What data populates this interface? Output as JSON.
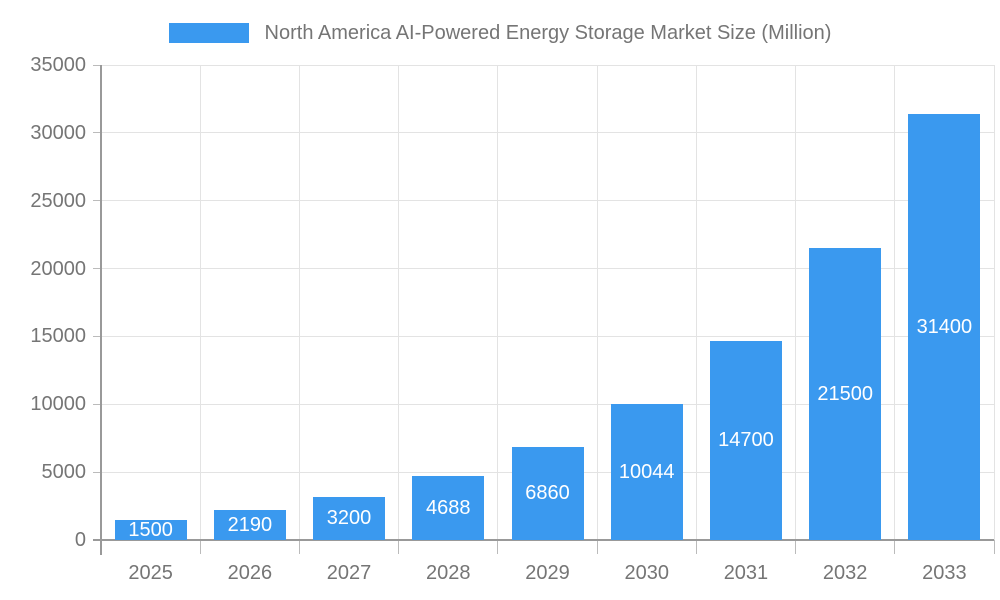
{
  "chart_data": {
    "type": "bar",
    "title": "",
    "categories": [
      "2025",
      "2026",
      "2027",
      "2028",
      "2029",
      "2030",
      "2031",
      "2032",
      "2033"
    ],
    "series": [
      {
        "name": "North America AI-Powered Energy Storage Market Size (Million)",
        "values": [
          1500,
          2190,
          3200,
          4688,
          6860,
          10044,
          14700,
          21500,
          31400
        ],
        "data_labels": [
          "1500",
          "2190",
          "3200",
          "4688",
          "6860",
          "10044",
          "14700",
          "21500",
          "31400"
        ]
      }
    ],
    "xlabel": "",
    "ylabel": "",
    "ylim": [
      0,
      35000
    ],
    "yticks": [
      0,
      5000,
      10000,
      15000,
      20000,
      25000,
      30000,
      35000
    ],
    "grid": true,
    "data_labels_position": "inside-center",
    "legend_position": "top-center",
    "colors": {
      "bar": "#3A99EF",
      "axis": "#999999",
      "grid": "#E3E3E3",
      "tick": "#BBBBBB",
      "text": "#757575",
      "data_label": "#FFFFFF",
      "background": "#FFFFFF"
    }
  }
}
